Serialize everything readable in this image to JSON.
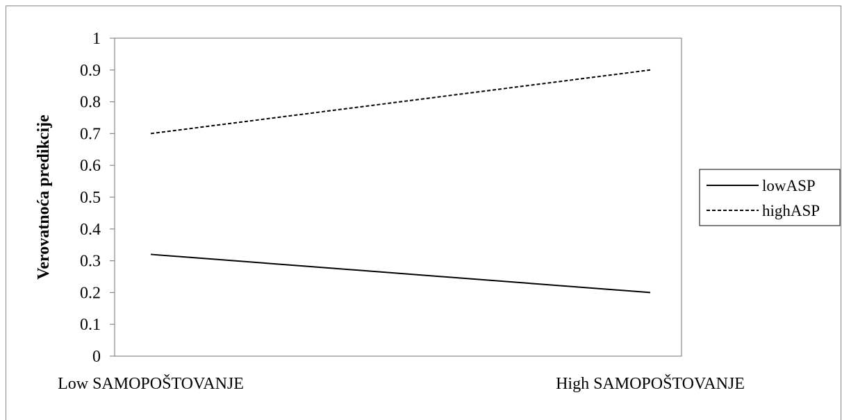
{
  "chart_data": {
    "type": "line",
    "title": "",
    "xlabel": "",
    "ylabel": "Verovatnoća predikcije",
    "categories": [
      "Low SAMOPOŠTOVANJE",
      "High SAMOPOŠTOVANJE"
    ],
    "ylim": [
      0,
      1
    ],
    "yticks": [
      "0",
      "0.1",
      "0.2",
      "0.3",
      "0.4",
      "0.5",
      "0.6",
      "0.7",
      "0.8",
      "0.9",
      "1"
    ],
    "grid": false,
    "legend_position": "right",
    "series": [
      {
        "name": "lowASP",
        "values": [
          0.32,
          0.2
        ],
        "style": "solid",
        "color": "#000000"
      },
      {
        "name": "highASP",
        "values": [
          0.7,
          0.9
        ],
        "style": "dashed",
        "color": "#000000"
      }
    ]
  }
}
